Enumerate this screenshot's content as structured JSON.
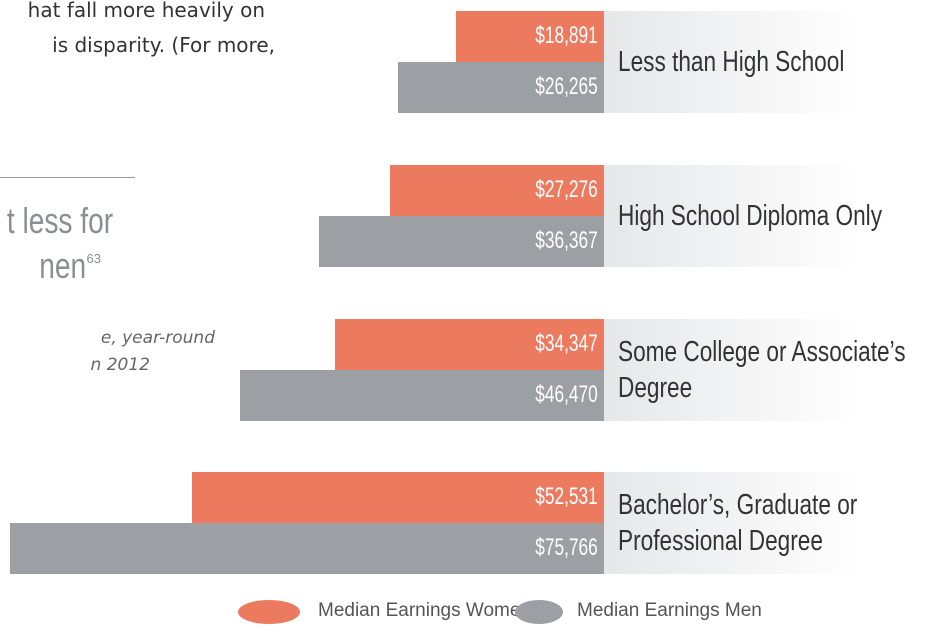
{
  "fragments": {
    "body_lines": [
      "hat fall more heavily on",
      "is disparity. (For more,"
    ],
    "heading_lines": [
      "t less for",
      "nen"
    ],
    "heading_note": "63",
    "caption_lines": [
      "e, year-round",
      "n 2012"
    ]
  },
  "chart_data": {
    "type": "bar",
    "orientation": "horizontal",
    "categories": [
      "Less than High School",
      "High School Diploma Only",
      "Some College or Associate’s Degree",
      "Bachelor’s, Graduate or Professional Degree"
    ],
    "series": [
      {
        "name": "Median Earnings Women",
        "color": "#ec7a5f",
        "values": [
          18891,
          27276,
          34347,
          52531
        ],
        "value_labels": [
          "$18,891",
          "$27,276",
          "$34,347",
          "$52,531"
        ]
      },
      {
        "name": "Median Earnings Men",
        "color": "#9c9fa3",
        "values": [
          26265,
          36367,
          46470,
          75766
        ],
        "value_labels": [
          "$26,265",
          "$36,367",
          "$46,470",
          "$75,766"
        ]
      }
    ]
  }
}
